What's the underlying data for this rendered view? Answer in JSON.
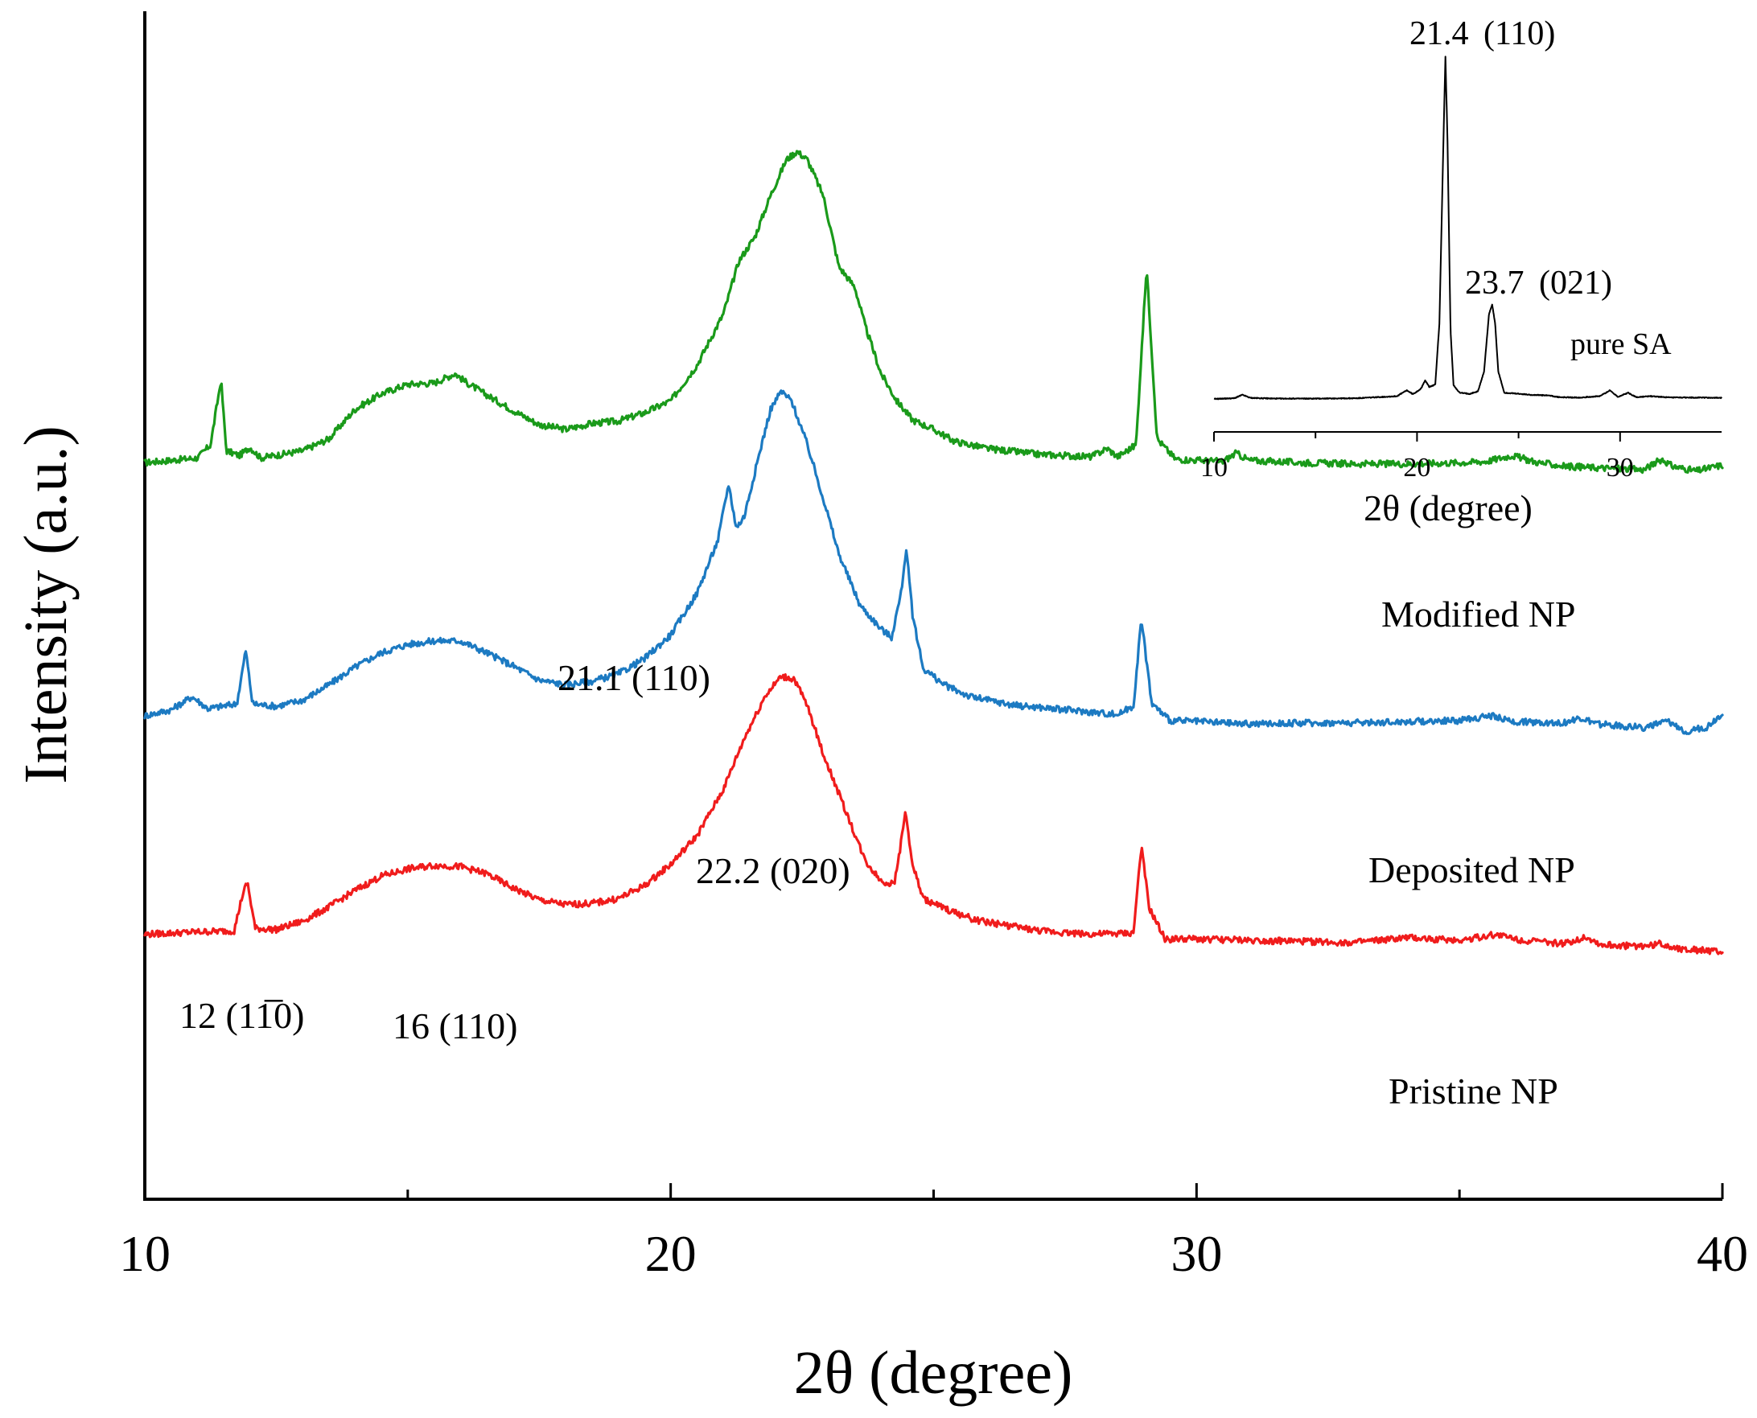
{
  "chart_data": [
    {
      "type": "line",
      "name": "main",
      "xlabel": "2θ (degree)",
      "ylabel": "Intensity (a.u.)",
      "xlim": [
        10,
        40
      ],
      "xticks": [
        10,
        20,
        30,
        40
      ],
      "x_minor_ticks": [
        15,
        25,
        35
      ],
      "ylim": [
        0,
        100
      ],
      "yticks": [],
      "series": [
        {
          "name": "Modified NP",
          "color": "#1a9a1a",
          "baseline": 62,
          "points": [
            [
              10,
              62
            ],
            [
              11,
              62.4
            ],
            [
              11.25,
              63.5
            ],
            [
              11.45,
              69
            ],
            [
              11.55,
              63
            ],
            [
              11.8,
              62.6
            ],
            [
              12.0,
              63.3
            ],
            [
              12.2,
              62.4
            ],
            [
              13,
              63
            ],
            [
              13.5,
              64
            ],
            [
              14,
              66.5
            ],
            [
              14.5,
              67.8
            ],
            [
              15,
              68.6
            ],
            [
              15.5,
              68.7
            ],
            [
              15.9,
              69.5
            ],
            [
              16.1,
              68.8
            ],
            [
              16.5,
              67.7
            ],
            [
              17,
              66.4
            ],
            [
              17.5,
              65.2
            ],
            [
              18,
              64.8
            ],
            [
              18.5,
              65.3
            ],
            [
              19,
              65.5
            ],
            [
              19.5,
              66.2
            ],
            [
              20,
              67.2
            ],
            [
              20.5,
              70.2
            ],
            [
              21,
              74.5
            ],
            [
              21.3,
              79
            ],
            [
              21.6,
              81
            ],
            [
              21.9,
              84.5
            ],
            [
              22.2,
              87.5
            ],
            [
              22.4,
              88.2
            ],
            [
              22.6,
              87.5
            ],
            [
              22.9,
              84.5
            ],
            [
              23.2,
              78.5
            ],
            [
              23.5,
              76.8
            ],
            [
              23.7,
              73.5
            ],
            [
              24.0,
              69.5
            ],
            [
              24.3,
              67.2
            ],
            [
              24.6,
              65.6
            ],
            [
              25.0,
              64.8
            ],
            [
              25.4,
              63.8
            ],
            [
              26,
              63.2
            ],
            [
              27,
              62.7
            ],
            [
              28,
              62.5
            ],
            [
              28.3,
              63.2
            ],
            [
              28.5,
              62.5
            ],
            [
              28.85,
              63.5
            ],
            [
              29.05,
              78.5
            ],
            [
              29.25,
              64
            ],
            [
              29.6,
              62.3
            ],
            [
              30.5,
              62.1
            ],
            [
              30.75,
              62.8
            ],
            [
              31,
              62.2
            ],
            [
              32,
              62
            ],
            [
              33,
              61.9
            ],
            [
              34,
              61.9
            ],
            [
              35,
              62
            ],
            [
              35.5,
              62.1
            ],
            [
              36.0,
              62.6
            ],
            [
              36.5,
              62
            ],
            [
              37,
              61.7
            ],
            [
              38,
              61.5
            ],
            [
              38.5,
              61.4
            ],
            [
              38.85,
              62.3
            ],
            [
              39.05,
              61.7
            ],
            [
              39.5,
              61.3
            ],
            [
              40,
              61.8
            ]
          ]
        },
        {
          "name": "Deposited NP",
          "color": "#1c7ac2",
          "baseline": 41,
          "points": [
            [
              10,
              40.7
            ],
            [
              10.5,
              41.2
            ],
            [
              10.9,
              42.3
            ],
            [
              11.2,
              41.3
            ],
            [
              11.75,
              41.7
            ],
            [
              11.92,
              46.2
            ],
            [
              12.05,
              41.7
            ],
            [
              12.5,
              41.5
            ],
            [
              13,
              42
            ],
            [
              13.5,
              43.3
            ],
            [
              14,
              44.8
            ],
            [
              14.5,
              46
            ],
            [
              15,
              46.7
            ],
            [
              15.5,
              47
            ],
            [
              16,
              47
            ],
            [
              16.5,
              46
            ],
            [
              17,
              44.9
            ],
            [
              17.5,
              43.7
            ],
            [
              18,
              43.3
            ],
            [
              18.5,
              43.6
            ],
            [
              19,
              44.2
            ],
            [
              19.5,
              45.5
            ],
            [
              20,
              47.5
            ],
            [
              20.5,
              51
            ],
            [
              20.9,
              55.5
            ],
            [
              21.1,
              60.2
            ],
            [
              21.25,
              56.5
            ],
            [
              21.4,
              57.5
            ],
            [
              21.7,
              63
            ],
            [
              21.9,
              66.5
            ],
            [
              22.1,
              68
            ],
            [
              22.3,
              67.2
            ],
            [
              22.6,
              63.5
            ],
            [
              22.9,
              59
            ],
            [
              23.2,
              54.3
            ],
            [
              23.6,
              50
            ],
            [
              24.0,
              48
            ],
            [
              24.2,
              47.3
            ],
            [
              24.38,
              51
            ],
            [
              24.48,
              54.8
            ],
            [
              24.6,
              49.2
            ],
            [
              24.8,
              44.7
            ],
            [
              25.2,
              43.3
            ],
            [
              25.7,
              42.3
            ],
            [
              26.5,
              41.6
            ],
            [
              27.5,
              41.2
            ],
            [
              28.5,
              40.8
            ],
            [
              28.8,
              41.5
            ],
            [
              28.95,
              48.8
            ],
            [
              29.15,
              41.7
            ],
            [
              29.5,
              40.3
            ],
            [
              30,
              40.2
            ],
            [
              31,
              40
            ],
            [
              32,
              40.1
            ],
            [
              33,
              40.1
            ],
            [
              34,
              40.2
            ],
            [
              35,
              40.3
            ],
            [
              35.6,
              40.7
            ],
            [
              36,
              40.2
            ],
            [
              37,
              40.1
            ],
            [
              37.3,
              40.5
            ],
            [
              37.6,
              40
            ],
            [
              38.5,
              39.7
            ],
            [
              38.95,
              40.2
            ],
            [
              39.3,
              39.4
            ],
            [
              39.7,
              39.7
            ],
            [
              40,
              40.9
            ]
          ]
        },
        {
          "name": "Pristine NP",
          "color": "#f01c1c",
          "baseline": 22,
          "points": [
            [
              10,
              22.3
            ],
            [
              11,
              22.5
            ],
            [
              11.7,
              22.6
            ],
            [
              11.85,
              25.5
            ],
            [
              11.95,
              26.7
            ],
            [
              12.1,
              22.8
            ],
            [
              12.5,
              22.7
            ],
            [
              13,
              23.4
            ],
            [
              13.5,
              24.6
            ],
            [
              14,
              26
            ],
            [
              14.5,
              27.2
            ],
            [
              15,
              27.8
            ],
            [
              15.5,
              28.1
            ],
            [
              16,
              28
            ],
            [
              16.5,
              27.4
            ],
            [
              17,
              26.2
            ],
            [
              17.5,
              25.2
            ],
            [
              18,
              24.8
            ],
            [
              18.5,
              24.9
            ],
            [
              19,
              25.3
            ],
            [
              19.5,
              26.4
            ],
            [
              20,
              28.2
            ],
            [
              20.5,
              30.6
            ],
            [
              21,
              34.5
            ],
            [
              21.4,
              38.8
            ],
            [
              21.8,
              42.4
            ],
            [
              22.1,
              44
            ],
            [
              22.35,
              43.8
            ],
            [
              22.6,
              41.5
            ],
            [
              22.9,
              37.5
            ],
            [
              23.3,
              33
            ],
            [
              23.7,
              28.5
            ],
            [
              24.0,
              26.8
            ],
            [
              24.25,
              26.5
            ],
            [
              24.38,
              30
            ],
            [
              24.47,
              32.8
            ],
            [
              24.58,
              28.5
            ],
            [
              24.8,
              25.3
            ],
            [
              25.3,
              24.3
            ],
            [
              25.8,
              23.5
            ],
            [
              26.2,
              23.2
            ],
            [
              27,
              22.6
            ],
            [
              28,
              22.3
            ],
            [
              28.8,
              22.4
            ],
            [
              28.95,
              29.7
            ],
            [
              29.1,
              24.5
            ],
            [
              29.4,
              21.9
            ],
            [
              30,
              21.9
            ],
            [
              31,
              21.8
            ],
            [
              32,
              21.7
            ],
            [
              33,
              21.6
            ],
            [
              34,
              22
            ],
            [
              35,
              21.8
            ],
            [
              35.7,
              22.3
            ],
            [
              36.2,
              21.8
            ],
            [
              37,
              21.5
            ],
            [
              37.4,
              22.1
            ],
            [
              37.7,
              21.4
            ],
            [
              38.5,
              21.3
            ],
            [
              38.8,
              21.5
            ],
            [
              39.2,
              21.1
            ],
            [
              40,
              20.8
            ]
          ]
        }
      ],
      "series_labels": [
        "Modified NP",
        "Deposited NP",
        "Pristine NP"
      ],
      "annotations": [
        {
          "text": "12 (11̅0)",
          "x": 11.9,
          "series": "Pristine NP"
        },
        {
          "text": "16 (110)",
          "x": 16,
          "series": "Pristine NP"
        },
        {
          "text": "22.2 (020)",
          "x": 22.2,
          "series": "Pristine NP"
        },
        {
          "text": "21.1 (110)",
          "x": 21.1,
          "series": "Deposited NP"
        }
      ]
    },
    {
      "type": "line",
      "name": "inset",
      "xlabel": "2θ (degree)",
      "xlim": [
        10,
        35
      ],
      "xticks": [
        10,
        20,
        30
      ],
      "x_minor_ticks": [
        15,
        25
      ],
      "series": [
        {
          "name": "pure SA",
          "color": "#000000",
          "points": [
            [
              10,
              0
            ],
            [
              11,
              0.2
            ],
            [
              11.4,
              1.2
            ],
            [
              11.8,
              0.3
            ],
            [
              13,
              0.1
            ],
            [
              15,
              0.1
            ],
            [
              17,
              0.2
            ],
            [
              19,
              0.8
            ],
            [
              19.5,
              2.5
            ],
            [
              19.8,
              1.4
            ],
            [
              20.2,
              3
            ],
            [
              20.4,
              5.5
            ],
            [
              20.6,
              3.5
            ],
            [
              20.9,
              4.2
            ],
            [
              21.1,
              22
            ],
            [
              21.3,
              75
            ],
            [
              21.4,
              100
            ],
            [
              21.5,
              75
            ],
            [
              21.65,
              20
            ],
            [
              21.8,
              4
            ],
            [
              22.1,
              1.8
            ],
            [
              22.6,
              1.5
            ],
            [
              23.0,
              2.2
            ],
            [
              23.3,
              8
            ],
            [
              23.55,
              25
            ],
            [
              23.7,
              27.5
            ],
            [
              23.85,
              22
            ],
            [
              24.0,
              8
            ],
            [
              24.3,
              1.8
            ],
            [
              25,
              1.5
            ],
            [
              25.6,
              1.2
            ],
            [
              26.5,
              1.0
            ],
            [
              27,
              0.5
            ],
            [
              28,
              0.4
            ],
            [
              29,
              0.8
            ],
            [
              29.5,
              2.5
            ],
            [
              29.9,
              0.6
            ],
            [
              30.4,
              1.8
            ],
            [
              30.8,
              0.5
            ],
            [
              31.5,
              0.8
            ],
            [
              32.5,
              0.4
            ],
            [
              34,
              0.4
            ],
            [
              35,
              0.3
            ]
          ]
        }
      ],
      "series_labels": [
        "pure SA"
      ],
      "annotations": [
        {
          "text": "21.4",
          "x": 21.4
        },
        {
          "text": "(110)",
          "x": 21.4
        },
        {
          "text": "23.7",
          "x": 23.7
        },
        {
          "text": "(021)",
          "x": 23.7
        }
      ]
    }
  ]
}
